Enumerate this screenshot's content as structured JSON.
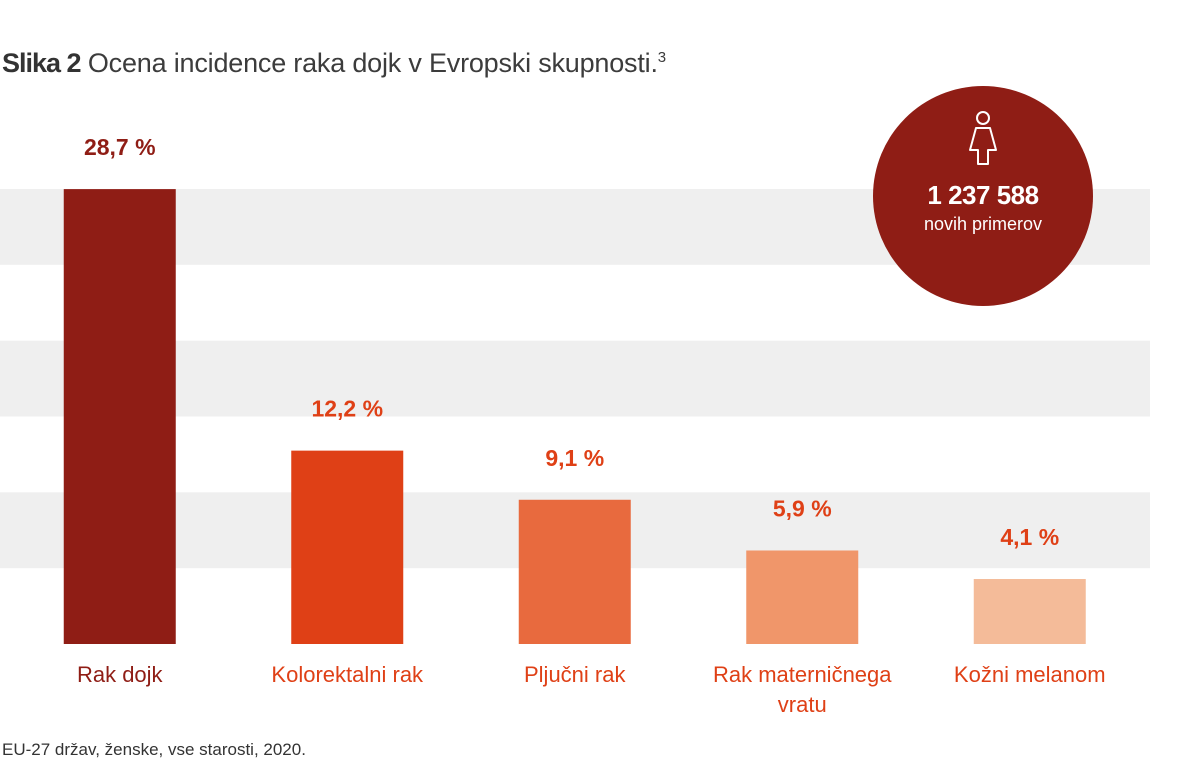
{
  "figure": {
    "prefix": "Slika 2",
    "title": "Ocena incidence raka dojk v Evropski skupnosti.",
    "ref": "3"
  },
  "footnote": "EU-27 držav, ženske, vse starosti, 2020.",
  "badge": {
    "icon": "female-person-icon",
    "number": "1 237 588",
    "label": "novih primerov",
    "color": "#8f1d15"
  },
  "chart_data": {
    "type": "bar",
    "categories": [
      "Rak dojk",
      "Kolorektalni rak",
      "Pljučni rak",
      "Rak materničnega vratu",
      "Kožni melanom"
    ],
    "category_lines": [
      [
        "Rak dojk"
      ],
      [
        "Kolorektalni rak"
      ],
      [
        "Pljučni rak"
      ],
      [
        "Rak materničnega",
        "vratu"
      ],
      [
        "Kožni melanom"
      ]
    ],
    "values": [
      28.7,
      12.2,
      9.1,
      5.9,
      4.1
    ],
    "value_labels": [
      "28,7 %",
      "12,2 %",
      "9,1 %",
      "5,9 %",
      "4,1 %"
    ],
    "bar_colors": [
      "#8f1d15",
      "#df4016",
      "#e86a3e",
      "#f0966a",
      "#f4bb99"
    ],
    "label_colors": [
      "#8f1d15",
      "#df4016",
      "#df4016",
      "#df4016",
      "#df4016"
    ],
    "band_color": "#efefef",
    "ylim": [
      0,
      30
    ],
    "grid": false,
    "legend": "none"
  }
}
